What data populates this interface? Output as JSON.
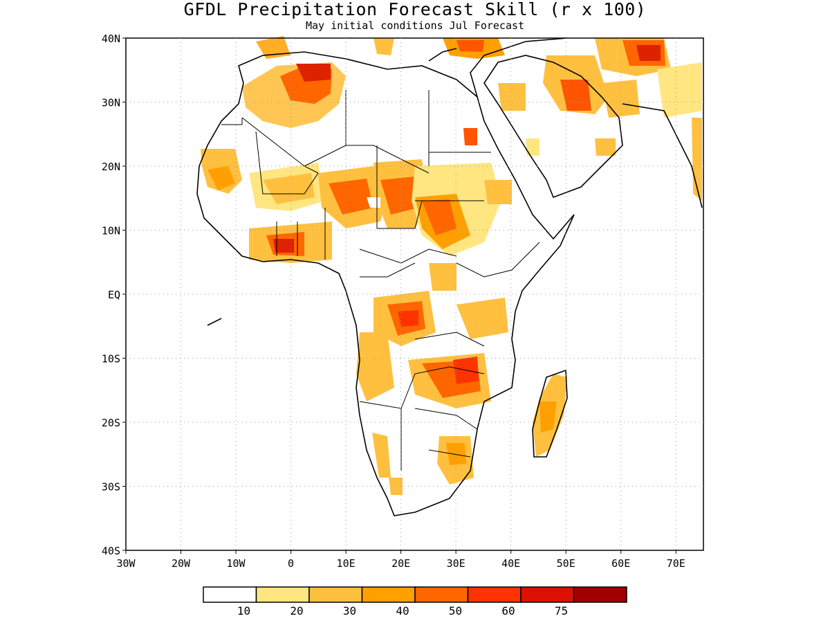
{
  "header": {
    "title": "GFDL Precipitation Forecast Skill (r x 100)",
    "subtitle": "May initial conditions  Jul Forecast"
  },
  "map": {
    "lat_labels": [
      "40N",
      "30N",
      "20N",
      "10N",
      "EQ",
      "10S",
      "20S",
      "30S",
      "40S"
    ],
    "lon_labels": [
      "30W",
      "20W",
      "10W",
      "0",
      "10E",
      "20E",
      "30E",
      "40E",
      "50E",
      "60E",
      "70E"
    ],
    "extent": {
      "lon_min": -30,
      "lon_max": 75,
      "lat_min": -40,
      "lat_max": 40
    },
    "gridlines": "dotted"
  },
  "legend": {
    "colors": [
      "#ffffff",
      "#ffe680",
      "#ffc040",
      "#ffa000",
      "#ff6600",
      "#ff3300",
      "#dd1100",
      "#a00000"
    ],
    "labels": [
      "10",
      "20",
      "30",
      "40",
      "50",
      "60",
      "75"
    ]
  }
}
